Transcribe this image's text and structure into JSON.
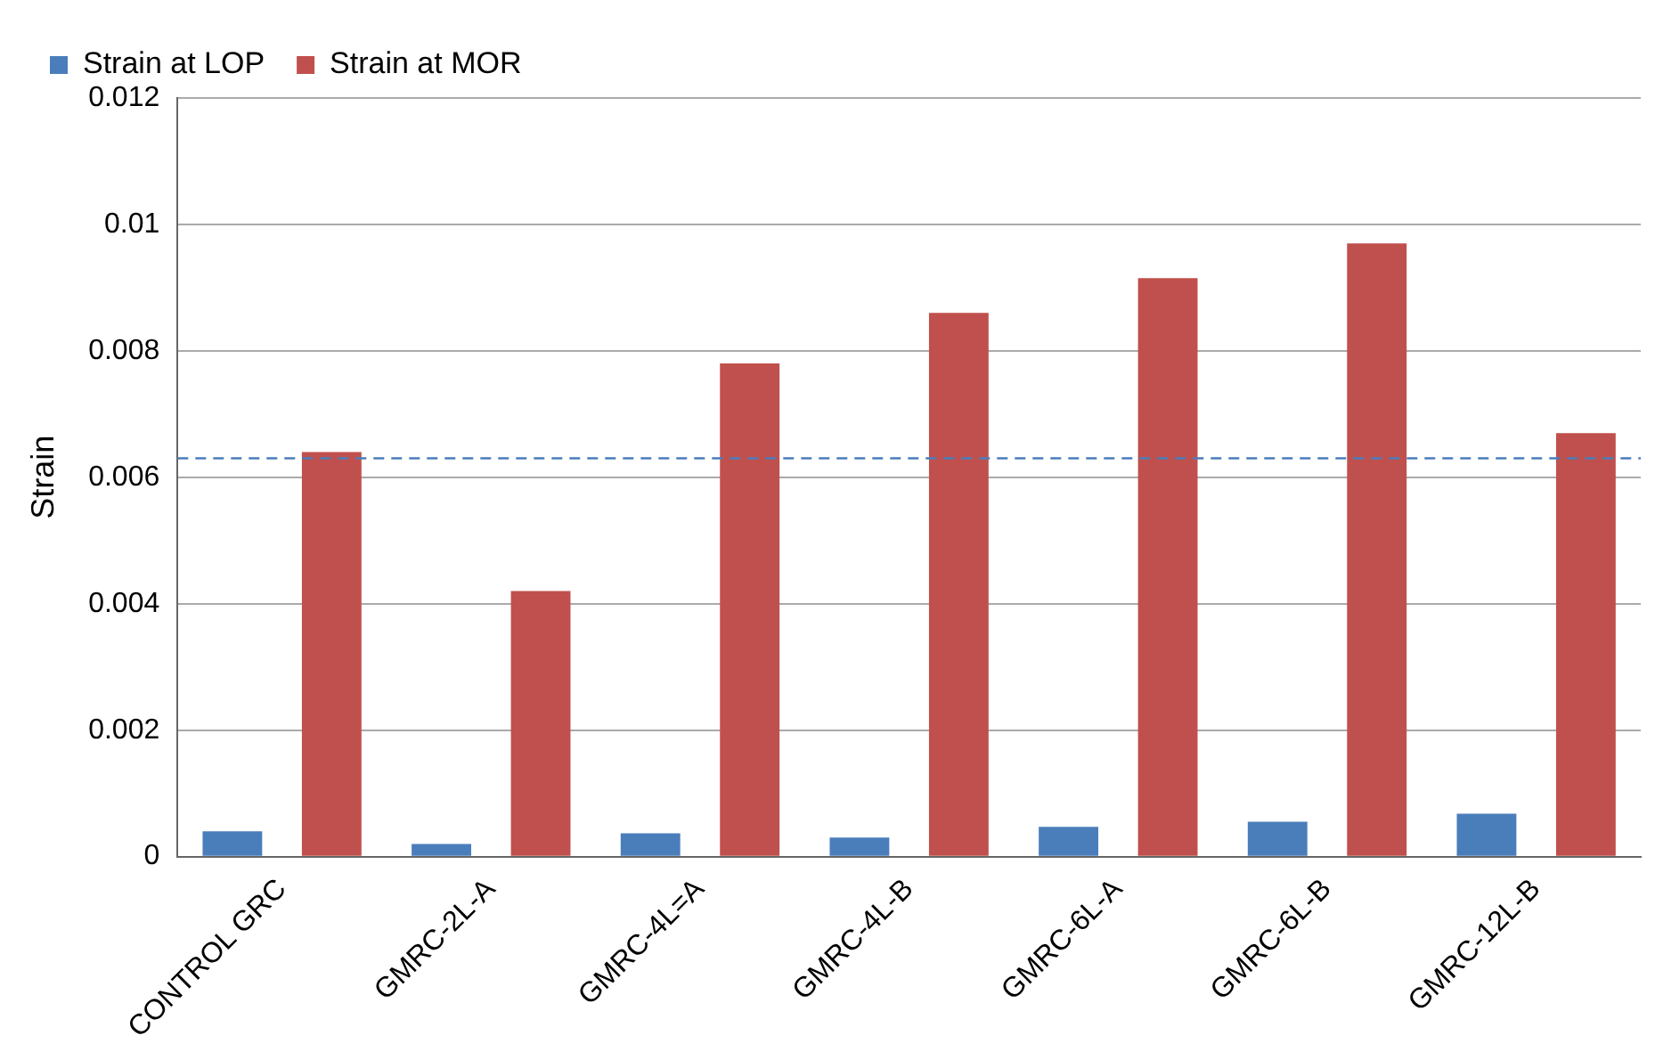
{
  "chart_data": {
    "type": "bar",
    "ylabel": "Strain",
    "categories": [
      "CONTROL GRC",
      "GMRC-2L-A",
      "GMRC-4L=A",
      "GMRC-4L-B",
      "GMRC-6L-A",
      "GMRC-6L-B",
      "GMRC-12L-B"
    ],
    "series": [
      {
        "name": "Strain at LOP",
        "color": "#4a7ebb",
        "values": [
          0.0004,
          0.0002,
          0.00037,
          0.0003,
          0.00047,
          0.00055,
          0.00068
        ]
      },
      {
        "name": "Strain at MOR",
        "color": "#c0504d",
        "values": [
          0.0064,
          0.0042,
          0.0078,
          0.0086,
          0.00915,
          0.0097,
          0.0067
        ]
      }
    ],
    "ylim": [
      0,
      0.012
    ],
    "yticks": [
      0,
      0.002,
      0.004,
      0.006,
      0.008,
      0.01,
      0.012
    ],
    "ref_lines": [
      {
        "axis": "y",
        "value": 0.0063,
        "color": "#4a7ebb",
        "line_style": "dashed"
      }
    ],
    "grid": "y",
    "legend": "top left"
  }
}
